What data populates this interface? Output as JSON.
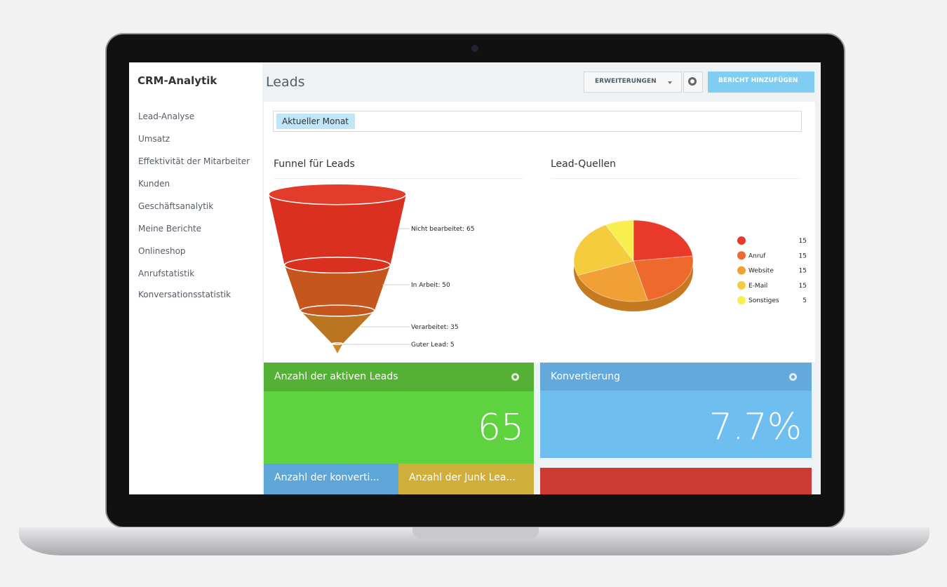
{
  "sidebar": {
    "title": "CRM-Analytik",
    "items": [
      "Lead-Analyse",
      "Umsatz",
      "Effektivität der Mitarbeiter",
      "Kunden",
      "Geschäftsanalytik",
      "Meine Berichte",
      "Onlineshop",
      "Anrufstatistik",
      "Konversationsstatistik"
    ]
  },
  "header": {
    "title": "Leads",
    "extensions_button": "ERWEITERUNGEN",
    "add_button": "BERICHT HINZUFÜGEN"
  },
  "filter": {
    "tag": "Aktueller Monat"
  },
  "funnel": {
    "title": "Funnel für Leads",
    "stages": [
      {
        "label": "Nicht bearbeitet: 65",
        "value": 65,
        "color": "#d9301f"
      },
      {
        "label": "In Arbeit: 50",
        "value": 50,
        "color": "#c4561e"
      },
      {
        "label": "Verarbeitet: 35",
        "value": 35,
        "color": "#bb7420"
      },
      {
        "label": "Guter Lead: 5",
        "value": 5,
        "color": "#c8882a"
      }
    ]
  },
  "pie": {
    "title": "Lead-Quellen",
    "slices": [
      {
        "name": null,
        "value": 15,
        "color": "#e8392b"
      },
      {
        "name": "Anruf",
        "value": 15,
        "color": "#ee6a2c"
      },
      {
        "name": "Website",
        "value": 15,
        "color": "#f0a035"
      },
      {
        "name": "E-Mail",
        "value": 15,
        "color": "#f5cc3d"
      },
      {
        "name": "Sonstiges",
        "value": 5,
        "color": "#f8ee4d"
      }
    ]
  },
  "tiles": [
    {
      "title": "Anzahl der aktiven Leads",
      "value": "65"
    },
    {
      "title": "Konvertierung",
      "value": "7.7%"
    },
    {
      "title": "Anzahl der konverti..."
    },
    {
      "title": "Anzahl der Junk Lea..."
    }
  ]
}
